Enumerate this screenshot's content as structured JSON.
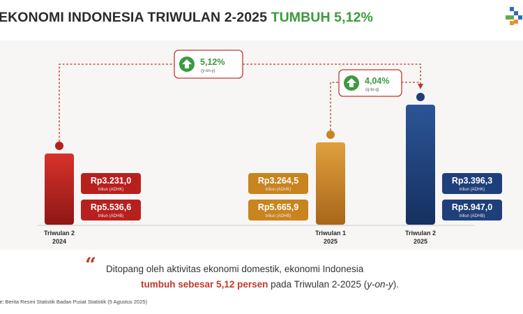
{
  "header": {
    "title_main": "EKONOMI INDONESIA TRIWULAN 2-2025",
    "title_accent": "TUMBUH 5,12%"
  },
  "colors": {
    "green_accent": "#3c9a3f",
    "red_bar": "#b8201e",
    "gold_bar": "#c8841f",
    "blue_bar": "#1f3f7a",
    "dashed_line": "#c0392b"
  },
  "chart_data": {
    "type": "bar",
    "categories": [
      "Triwulan 2\n2024",
      "Triwulan 1\n2025",
      "Triwulan 2\n2025"
    ],
    "category_lines": [
      [
        "Triwulan 2",
        "2024"
      ],
      [
        "Triwulan 1",
        "2025"
      ],
      [
        "Triwulan 2",
        "2025"
      ]
    ],
    "values": [
      5536.6,
      5665.9,
      5947.0
    ],
    "bar_colors": [
      "#b8201e",
      "#c8841f",
      "#1f3f7a"
    ],
    "labels": [
      {
        "adhk": "Rp3.231,0",
        "adhk_unit": "triliun (ADHK)",
        "adhb": "Rp5.536,6",
        "adhb_unit": "triliun (ADHB)"
      },
      {
        "adhk": "Rp3.264,5",
        "adhk_unit": "triliun (ADHK)",
        "adhb": "Rp5.665,9",
        "adhb_unit": "triliun (ADHB)"
      },
      {
        "adhk": "Rp3.396,3",
        "adhk_unit": "triliun (ADHK)",
        "adhb": "Rp5.947,0",
        "adhb_unit": "triliun (ADHB)"
      }
    ],
    "annotations": [
      {
        "value": "5,12%",
        "sub": "(y-on-y)",
        "from": "Triwulan 2\n2024",
        "to": "Triwulan 2\n2025"
      },
      {
        "value": "4,04%",
        "sub": "(q-to-q)",
        "from": "Triwulan 1\n2025",
        "to": "Triwulan 2\n2025"
      }
    ],
    "title": "",
    "xlabel": "",
    "ylabel": "",
    "grid": false
  },
  "quote": {
    "line1": "Ditopang oleh aktivitas ekonomi domestik, ekonomi Indonesia",
    "line2_highlight": "tumbuh sebesar 5,12 persen",
    "line2_rest": " pada Triwulan 2-2025 (",
    "line2_italic": "y-on-y",
    "line2_end": ")."
  },
  "source": {
    "label": "r:",
    "text": " Berita Resmi Statistik Badan Pusat Statistik (5 Agustus 2025)"
  }
}
